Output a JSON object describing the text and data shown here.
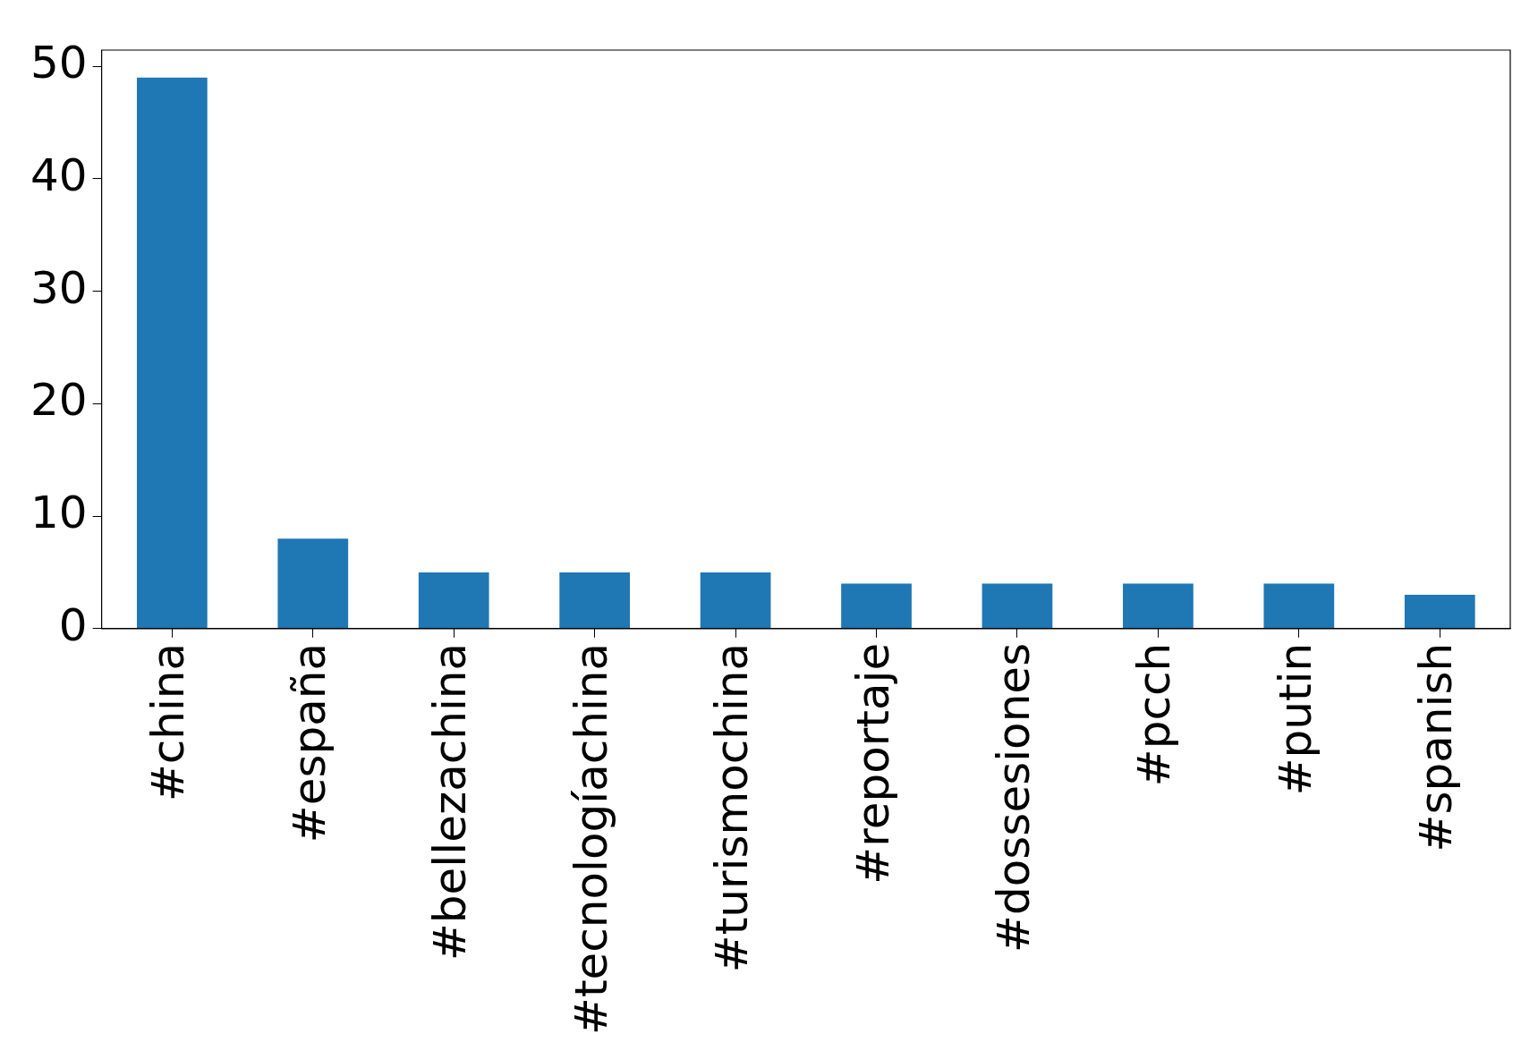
{
  "chart_data": {
    "type": "bar",
    "categories": [
      "#china",
      "#españa",
      "#bellezachina",
      "#tecnologíachina",
      "#turismochina",
      "#reportaje",
      "#dossesiones",
      "#pcch",
      "#putin",
      "#spanish"
    ],
    "values": [
      49,
      8,
      5,
      5,
      5,
      4,
      4,
      4,
      4,
      3
    ],
    "color": "#1f77b4",
    "ylim": [
      0,
      51.45
    ],
    "yticks": [
      0,
      10,
      20,
      30,
      40,
      50
    ],
    "grid": false,
    "legend": false
  }
}
